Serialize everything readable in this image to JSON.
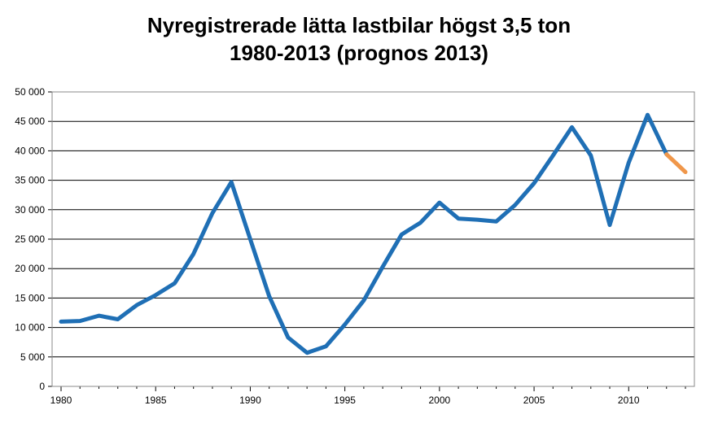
{
  "chart_data": {
    "type": "line",
    "title_line1": "Nyregistrerade lätta lastbilar högst 3,5 ton",
    "title_line2": "1980-2013 (prognos 2013)",
    "xlabel": "",
    "ylabel": "",
    "xlim": [
      1980,
      2013
    ],
    "ylim": [
      0,
      50000
    ],
    "y_ticks": [
      0,
      5000,
      10000,
      15000,
      20000,
      25000,
      30000,
      35000,
      40000,
      45000,
      50000
    ],
    "y_tick_labels": [
      "0",
      "5 000",
      "10 000",
      "15 000",
      "20 000",
      "25 000",
      "30 000",
      "35 000",
      "40 000",
      "45 000",
      "50 000"
    ],
    "x_ticks": [
      1980,
      1985,
      1990,
      1995,
      2000,
      2005,
      2010
    ],
    "x_tick_labels": [
      "1980",
      "1985",
      "1990",
      "1995",
      "2000",
      "2005",
      "2010"
    ],
    "grid": "horizontal",
    "legend": "none",
    "series": [
      {
        "color": "#1f6fb5",
        "x": [
          1980,
          1981,
          1982,
          1983,
          1984,
          1985,
          1986,
          1987,
          1988,
          1989,
          1990,
          1991,
          1992,
          1993,
          1994,
          1995,
          1996,
          1997,
          1998,
          1999,
          2000,
          2001,
          2002,
          2003,
          2004,
          2005,
          2006,
          2007,
          2008,
          2009,
          2010,
          2011,
          2012
        ],
        "values": [
          11000,
          11100,
          12000,
          11400,
          13800,
          15500,
          17500,
          22500,
          29400,
          34700,
          25000,
          15300,
          8300,
          5700,
          6800,
          10500,
          14600,
          20300,
          25800,
          27800,
          31200,
          28500,
          28300,
          28000,
          30800,
          34500,
          39200,
          44000,
          39200,
          27400,
          38000,
          46100,
          39400
        ]
      },
      {
        "color": "#f0974a",
        "x": [
          2012,
          2013
        ],
        "values": [
          39400,
          36400
        ]
      }
    ]
  }
}
